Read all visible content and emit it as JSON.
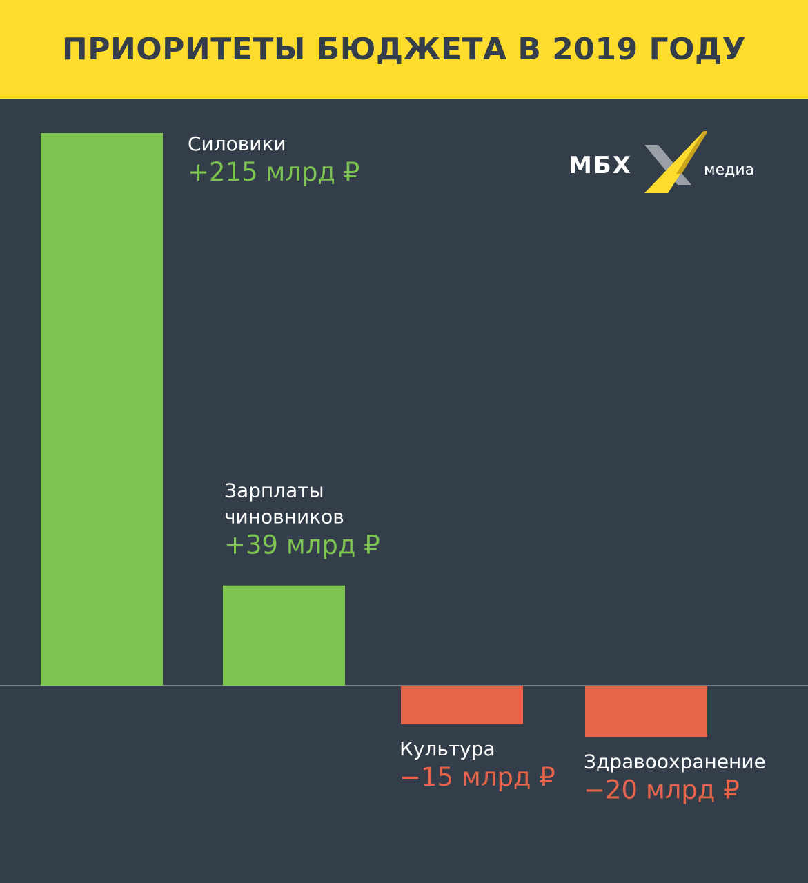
{
  "header": {
    "title": "ПРИОРИТЕТЫ БЮДЖЕТА В 2019 ГОДУ"
  },
  "logo": {
    "text": "МБХ",
    "sub": "медиа"
  },
  "colors": {
    "positive": "#7dc451",
    "negative": "#e6644a",
    "background": "#333e4a",
    "header": "#fedc2e",
    "baseline": "#8a939c"
  },
  "chart_data": {
    "type": "bar",
    "title": "ПРИОРИТЕТЫ БЮДЖЕТА В 2019 ГОДУ",
    "unit": "млрд ₽",
    "categories": [
      "Силовики",
      "Зарплаты чиновников",
      "Культура",
      "Здравоохранение"
    ],
    "category_lines": [
      [
        "Силовики"
      ],
      [
        "Зарплаты",
        "чиновников"
      ],
      [
        "Культура"
      ],
      [
        "Здравоохранение"
      ]
    ],
    "values": [
      215,
      39,
      -15,
      -20
    ],
    "value_labels": [
      "+215 млрд ₽",
      "+39 млрд ₽",
      "−15 млрд ₽",
      "−20 млрд ₽"
    ],
    "ylim": [
      -20,
      215
    ],
    "grid": false,
    "legend": "none"
  }
}
